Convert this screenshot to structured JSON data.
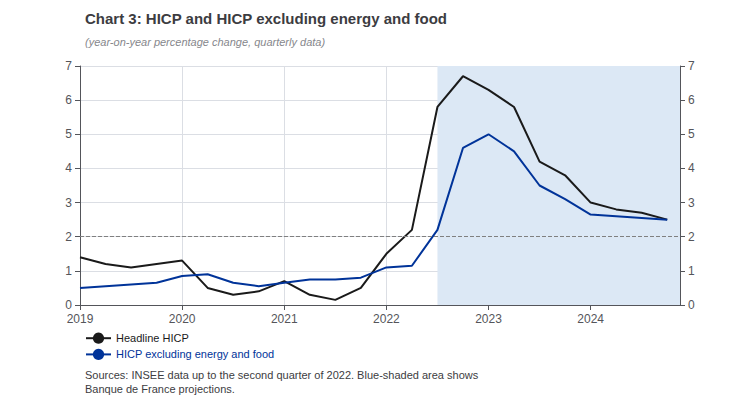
{
  "chart_data": {
    "type": "line",
    "title": "Chart 3: HICP and HICP excluding energy and food",
    "subtitle": "(year-on-year percentage change, quarterly data)",
    "annotations": [
      "Sources: INSEE data up to the second quarter of 2022. Blue-shaded area shows\nBanque de France projections."
    ],
    "x": [
      2019.0,
      2019.25,
      2019.5,
      2019.75,
      2020.0,
      2020.25,
      2020.5,
      2020.75,
      2021.0,
      2021.25,
      2021.5,
      2021.75,
      2022.0,
      2022.25,
      2022.5,
      2022.75,
      2023.0,
      2023.25,
      2023.5,
      2023.75,
      2024.0,
      2024.25,
      2024.5,
      2024.75
    ],
    "series": [
      {
        "name": "Headline HICP",
        "color": "#1a1a1a",
        "values": [
          1.4,
          1.2,
          1.1,
          1.2,
          1.3,
          0.5,
          0.3,
          0.4,
          0.7,
          0.3,
          0.15,
          0.5,
          1.5,
          2.2,
          5.8,
          6.7,
          6.3,
          5.8,
          4.2,
          3.8,
          3.0,
          2.8,
          2.7,
          2.5
        ]
      },
      {
        "name": "HICP excluding energy and food",
        "color": "#003399",
        "values": [
          0.5,
          0.55,
          0.6,
          0.65,
          0.85,
          0.9,
          0.65,
          0.55,
          0.65,
          0.75,
          0.75,
          0.8,
          1.1,
          1.15,
          2.2,
          4.6,
          5.0,
          4.5,
          3.5,
          3.1,
          2.65,
          2.6,
          2.55,
          2.5
        ]
      }
    ],
    "shade": {
      "x": [
        2022.5,
        2024.875
      ],
      "color": "#dce8f5"
    },
    "hline": 2.0,
    "xlim": [
      2019.0,
      2024.875
    ],
    "xticks": [
      2019,
      2020,
      2021,
      2022,
      2023,
      2024
    ],
    "ylim": [
      0,
      7
    ],
    "yticks": [
      0,
      1,
      2,
      3,
      4,
      5,
      6,
      7
    ],
    "y2lim": [
      0,
      7
    ],
    "y2ticks": [
      0,
      1,
      2,
      3,
      4,
      5,
      6,
      7
    ],
    "grid": true,
    "legend": "bottom"
  }
}
